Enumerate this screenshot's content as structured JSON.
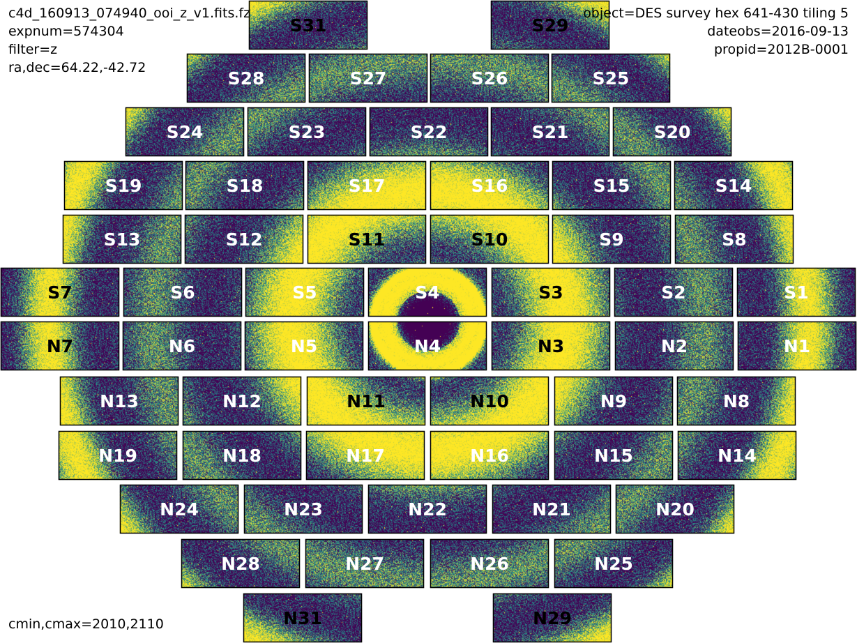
{
  "header_left": {
    "filename": "c4d_160913_074940_ooi_z_v1.fits.fz",
    "expnum": "expnum=574304",
    "filter": "filter=z",
    "radec": "ra,dec=64.22,-42.72"
  },
  "header_right": {
    "object": "object=DES survey hex 641-430 tiling 5",
    "dateobs": "dateobs=2016-09-13",
    "propid": "propid=2012B-0001"
  },
  "footer": {
    "cmin_cmax": "cmin,cmax=2010,2110"
  },
  "colormap": {
    "low": "#440154",
    "mid": "#21918c",
    "high": "#fde725"
  },
  "ccds": [
    {
      "name": "S31",
      "label_color": "#000000"
    },
    {
      "name": "S29",
      "label_color": "#000000"
    },
    {
      "name": "S28",
      "label_color": "#ffffff"
    },
    {
      "name": "S27",
      "label_color": "#ffffff"
    },
    {
      "name": "S26",
      "label_color": "#ffffff"
    },
    {
      "name": "S25",
      "label_color": "#ffffff"
    },
    {
      "name": "S24",
      "label_color": "#ffffff"
    },
    {
      "name": "S23",
      "label_color": "#ffffff"
    },
    {
      "name": "S22",
      "label_color": "#ffffff"
    },
    {
      "name": "S21",
      "label_color": "#ffffff"
    },
    {
      "name": "S20",
      "label_color": "#ffffff"
    },
    {
      "name": "S19",
      "label_color": "#ffffff"
    },
    {
      "name": "S18",
      "label_color": "#ffffff"
    },
    {
      "name": "S17",
      "label_color": "#ffffff"
    },
    {
      "name": "S16",
      "label_color": "#ffffff"
    },
    {
      "name": "S15",
      "label_color": "#ffffff"
    },
    {
      "name": "S14",
      "label_color": "#ffffff"
    },
    {
      "name": "S13",
      "label_color": "#ffffff"
    },
    {
      "name": "S12",
      "label_color": "#ffffff"
    },
    {
      "name": "S11",
      "label_color": "#000000"
    },
    {
      "name": "S10",
      "label_color": "#000000"
    },
    {
      "name": "S9",
      "label_color": "#ffffff"
    },
    {
      "name": "S8",
      "label_color": "#ffffff"
    },
    {
      "name": "S7",
      "label_color": "#000000"
    },
    {
      "name": "S6",
      "label_color": "#ffffff"
    },
    {
      "name": "S5",
      "label_color": "#ffffff"
    },
    {
      "name": "S4",
      "label_color": "#ffffff"
    },
    {
      "name": "S3",
      "label_color": "#000000"
    },
    {
      "name": "S2",
      "label_color": "#ffffff"
    },
    {
      "name": "S1",
      "label_color": "#ffffff"
    },
    {
      "name": "N7",
      "label_color": "#000000"
    },
    {
      "name": "N6",
      "label_color": "#ffffff"
    },
    {
      "name": "N5",
      "label_color": "#ffffff"
    },
    {
      "name": "N4",
      "label_color": "#ffffff"
    },
    {
      "name": "N3",
      "label_color": "#000000"
    },
    {
      "name": "N2",
      "label_color": "#ffffff"
    },
    {
      "name": "N1",
      "label_color": "#ffffff"
    },
    {
      "name": "N13",
      "label_color": "#ffffff"
    },
    {
      "name": "N12",
      "label_color": "#ffffff"
    },
    {
      "name": "N11",
      "label_color": "#000000"
    },
    {
      "name": "N10",
      "label_color": "#000000"
    },
    {
      "name": "N9",
      "label_color": "#ffffff"
    },
    {
      "name": "N8",
      "label_color": "#ffffff"
    },
    {
      "name": "N19",
      "label_color": "#ffffff"
    },
    {
      "name": "N18",
      "label_color": "#ffffff"
    },
    {
      "name": "N17",
      "label_color": "#ffffff"
    },
    {
      "name": "N16",
      "label_color": "#ffffff"
    },
    {
      "name": "N15",
      "label_color": "#ffffff"
    },
    {
      "name": "N14",
      "label_color": "#ffffff"
    },
    {
      "name": "N24",
      "label_color": "#ffffff"
    },
    {
      "name": "N23",
      "label_color": "#ffffff"
    },
    {
      "name": "N22",
      "label_color": "#ffffff"
    },
    {
      "name": "N21",
      "label_color": "#ffffff"
    },
    {
      "name": "N20",
      "label_color": "#ffffff"
    },
    {
      "name": "N28",
      "label_color": "#ffffff"
    },
    {
      "name": "N27",
      "label_color": "#ffffff"
    },
    {
      "name": "N26",
      "label_color": "#ffffff"
    },
    {
      "name": "N25",
      "label_color": "#ffffff"
    },
    {
      "name": "N31",
      "label_color": "#000000"
    },
    {
      "name": "N29",
      "label_color": "#000000"
    }
  ]
}
